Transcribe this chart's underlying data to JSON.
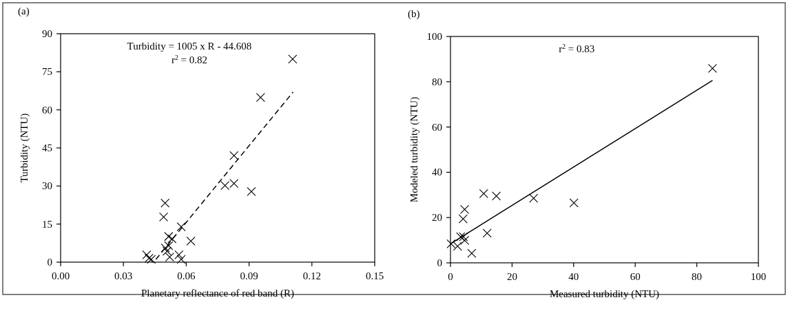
{
  "chart_data": [
    {
      "type": "scatter",
      "title": "(a)",
      "xlabel": "Planetary reflectance of red band (R)",
      "ylabel": "Turbidity (NTU)",
      "annotations": [
        "Turbidity = 1005 x R - 44.608",
        "r$^{2}$ = 0.82"
      ],
      "xlim": [
        0,
        0.15
      ],
      "xticks": [
        {
          "value": 0,
          "label": "0.00"
        },
        {
          "value": 0.03,
          "label": "0.03"
        },
        {
          "value": 0.06,
          "label": "0.06"
        },
        {
          "value": 0.09,
          "label": "0.09"
        },
        {
          "value": 0.12,
          "label": "0.12"
        },
        {
          "value": 0.15,
          "label": "0.15"
        }
      ],
      "ylim": [
        0,
        90
      ],
      "yticks": [
        0,
        15,
        30,
        45,
        60,
        75,
        90
      ],
      "grid": false,
      "marker": "cross",
      "series": [
        {
          "color": "#000000",
          "x": [
            0.1108,
            0.0955,
            0.0828,
            0.0785,
            0.0828,
            0.0911,
            0.0499,
            0.0492,
            0.0576,
            0.0622,
            0.0516,
            0.0532,
            0.05,
            0.0508,
            0.0516,
            0.0411,
            0.0422,
            0.0433,
            0.0565,
            0.0576,
            0.0521
          ],
          "values": [
            80,
            64.9,
            42,
            30.2,
            31,
            27.8,
            23.3,
            17.8,
            13.9,
            8.3,
            10.1,
            9.2,
            5.6,
            4.3,
            6.5,
            2.9,
            1.5,
            1.1,
            2.9,
            1.1,
            2
          ]
        },
        {
          "type": "line",
          "color": "#000000",
          "line_style": "dashed",
          "marker": "none",
          "x": [
            0.0455,
            0.111
          ],
          "values": [
            1.1,
            67
          ]
        }
      ]
    },
    {
      "type": "scatter",
      "title": "(b)",
      "xlabel": "Measured turbidity (NTU)",
      "ylabel": "Modeled turbidity (NTU)",
      "annotations": [
        "r$^{2}$ = 0.83"
      ],
      "xlim": [
        0,
        100
      ],
      "xticks": [
        0,
        20,
        40,
        60,
        80,
        100
      ],
      "ylim": [
        0,
        100
      ],
      "yticks": [
        0,
        20,
        40,
        60,
        80,
        100
      ],
      "grid": false,
      "marker": "cross",
      "series": [
        {
          "color": "#000000",
          "x": [
            85.1,
            10.8,
            14.9,
            27,
            40.1,
            4.6,
            4.1,
            11.9,
            4.2,
            4.6,
            3.3,
            0.2,
            2.3,
            6.9
          ],
          "values": [
            85.9,
            30.6,
            29.5,
            28.5,
            26.5,
            23.6,
            19.4,
            13.1,
            11.5,
            9.9,
            11.5,
            8.4,
            7.3,
            4.2
          ]
        },
        {
          "type": "line",
          "color": "#000000",
          "line_style": "solid",
          "marker": "none",
          "x": [
            0,
            85.1
          ],
          "values": [
            8.4,
            80.6
          ]
        }
      ]
    }
  ]
}
